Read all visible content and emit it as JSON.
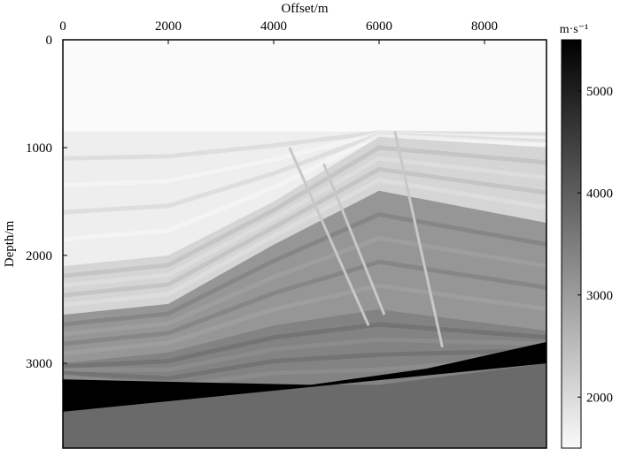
{
  "chart_data": {
    "type": "heatmap",
    "title": "",
    "xlabel": "Offset/m",
    "ylabel": "Depth/m",
    "x_axis_position": "top",
    "xlim": [
      0,
      9200
    ],
    "ylim": [
      0,
      3800
    ],
    "y_inverted": true,
    "x_ticks": [
      0,
      2000,
      4000,
      6000,
      8000
    ],
    "y_ticks": [
      0,
      1000,
      2000,
      3000
    ],
    "grid": false,
    "colormap": "gray_reversed",
    "colorbar": {
      "label": "m·s⁻¹",
      "min": 1500,
      "max": 5500,
      "ticks": [
        2000,
        3000,
        4000,
        5000
      ],
      "position": "right"
    },
    "water_layer": {
      "depth_top": 0,
      "depth_bottom": 850,
      "velocity": 1500
    },
    "layers": [
      {
        "x": [
          0,
          2000,
          4000,
          6000,
          9200
        ],
        "depth": [
          850,
          850,
          850,
          850,
          850
        ],
        "velocity": 1700
      },
      {
        "x": [
          0,
          2000,
          4000,
          6000,
          9200
        ],
        "depth": [
          2100,
          2000,
          1500,
          900,
          1000
        ],
        "velocity": 2100
      },
      {
        "x": [
          0,
          2000,
          4000,
          6000,
          9200
        ],
        "depth": [
          2550,
          2450,
          1900,
          1400,
          1700
        ],
        "velocity": 3100
      },
      {
        "x": [
          0,
          2000,
          4000,
          6000,
          9200
        ],
        "depth": [
          3000,
          2900,
          2650,
          2500,
          2700
        ],
        "velocity": 3400
      },
      {
        "x": [
          0,
          2000,
          4000,
          6000,
          9200
        ],
        "depth": [
          3150,
          3300,
          3200,
          3200,
          3000
        ],
        "velocity": 3800
      }
    ],
    "salt_body": {
      "x": [
        0,
        4700,
        6900,
        9200,
        9200,
        0
      ],
      "depth": [
        3150,
        3200,
        3050,
        2800,
        3000,
        3450
      ],
      "velocity": 5500
    },
    "faults": [
      {
        "x": [
          4300,
          5800
        ],
        "depth": [
          1000,
          2650
        ]
      },
      {
        "x": [
          4950,
          6100
        ],
        "depth": [
          1150,
          2550
        ]
      },
      {
        "x": [
          6300,
          7200
        ],
        "depth": [
          850,
          2850
        ]
      }
    ]
  }
}
